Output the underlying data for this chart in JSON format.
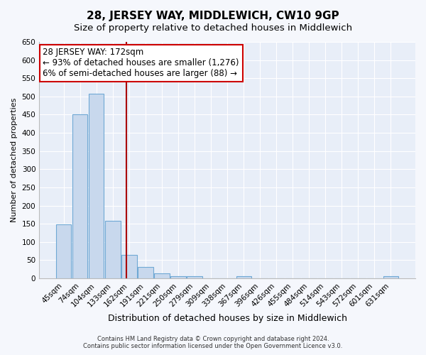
{
  "title": "28, JERSEY WAY, MIDDLEWICH, CW10 9GP",
  "subtitle": "Size of property relative to detached houses in Middlewich",
  "xlabel": "Distribution of detached houses by size in Middlewich",
  "ylabel": "Number of detached properties",
  "bar_labels": [
    "45sqm",
    "74sqm",
    "104sqm",
    "133sqm",
    "162sqm",
    "191sqm",
    "221sqm",
    "250sqm",
    "279sqm",
    "309sqm",
    "338sqm",
    "367sqm",
    "396sqm",
    "426sqm",
    "455sqm",
    "484sqm",
    "514sqm",
    "543sqm",
    "572sqm",
    "601sqm",
    "631sqm"
  ],
  "bar_values": [
    148,
    450,
    507,
    158,
    65,
    32,
    13,
    5,
    5,
    0,
    0,
    5,
    0,
    0,
    0,
    0,
    0,
    0,
    0,
    0,
    5
  ],
  "bar_color": "#c8d8ed",
  "bar_edge_color": "#6fa8d4",
  "ylim": [
    0,
    650
  ],
  "yticks": [
    0,
    50,
    100,
    150,
    200,
    250,
    300,
    350,
    400,
    450,
    500,
    550,
    600,
    650
  ],
  "vline_x": 3.85,
  "vline_color": "#aa0000",
  "annotation_title": "28 JERSEY WAY: 172sqm",
  "annotation_line1": "← 93% of detached houses are smaller (1,276)",
  "annotation_line2": "6% of semi-detached houses are larger (88) →",
  "annotation_box_color": "#cc0000",
  "footer_line1": "Contains HM Land Registry data © Crown copyright and database right 2024.",
  "footer_line2": "Contains public sector information licensed under the Open Government Licence v3.0.",
  "bg_color": "#f5f7fc",
  "plot_bg_color": "#e8eef8",
  "grid_color": "#ffffff",
  "title_fontsize": 11,
  "subtitle_fontsize": 9.5,
  "xlabel_fontsize": 9,
  "ylabel_fontsize": 8,
  "tick_fontsize": 7.5,
  "annotation_fontsize": 8.5,
  "footer_fontsize": 6
}
